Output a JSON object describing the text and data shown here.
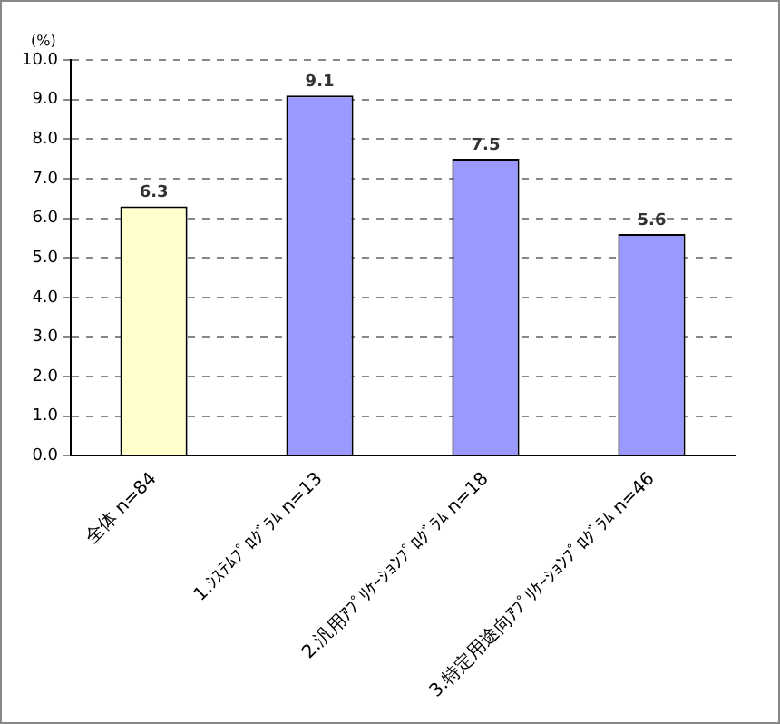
{
  "chart_data": {
    "type": "bar",
    "ylabel": "(%)",
    "categories": [
      "全体 n=84",
      "1.ｼｽﾃﾑﾌﾟﾛｸﾞﾗﾑ n=13",
      "2.汎用ｱﾌﾟﾘｹｰｼｮﾝﾌﾟﾛｸﾞﾗﾑ n=18",
      "3.特定用途向ｱﾌﾟﾘｹｰｼｮﾝﾌﾟﾛｸﾞﾗﾑ n=46"
    ],
    "values": [
      6.3,
      9.1,
      7.5,
      5.6
    ],
    "colors": [
      "#ffffcc",
      "#9999ff",
      "#9999ff",
      "#9999ff"
    ],
    "ylim": [
      0,
      10
    ],
    "yticks": [
      {
        "value": 0,
        "label": "0.0"
      },
      {
        "value": 1,
        "label": "1.0"
      },
      {
        "value": 2,
        "label": "2.0"
      },
      {
        "value": 3,
        "label": "3.0"
      },
      {
        "value": 4,
        "label": "4.0"
      },
      {
        "value": 5,
        "label": "5.0"
      },
      {
        "value": 6,
        "label": "6.0"
      },
      {
        "value": 7,
        "label": "7.0"
      },
      {
        "value": 8,
        "label": "8.0"
      },
      {
        "value": 9,
        "label": "9.0"
      },
      {
        "value": 10,
        "label": "10.0"
      }
    ],
    "grid": "y",
    "data_labels": true
  }
}
